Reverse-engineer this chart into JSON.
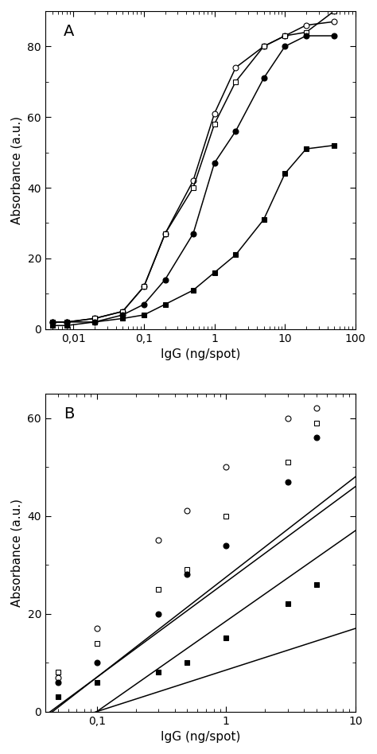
{
  "panel_A": {
    "label": "A",
    "xlabel": "IgG (ng/spot)",
    "ylabel": "Absorbance (a.u.)",
    "xlim": [
      0.004,
      100
    ],
    "ylim": [
      0,
      90
    ],
    "yticks": [
      0,
      20,
      40,
      60,
      80
    ],
    "series": [
      {
        "name": "open_circle",
        "marker": "o",
        "fillstyle": "none",
        "x": [
          0.005,
          0.008,
          0.02,
          0.05,
          0.1,
          0.2,
          0.5,
          1,
          2,
          5,
          10,
          20,
          50
        ],
        "y": [
          2,
          2,
          3,
          5,
          12,
          27,
          42,
          61,
          74,
          80,
          83,
          86,
          87
        ]
      },
      {
        "name": "open_square",
        "marker": "s",
        "fillstyle": "none",
        "x": [
          0.005,
          0.008,
          0.02,
          0.05,
          0.1,
          0.2,
          0.5,
          1,
          2,
          5,
          10,
          20,
          50
        ],
        "y": [
          2,
          2,
          3,
          5,
          12,
          27,
          40,
          58,
          70,
          80,
          83,
          84,
          90
        ]
      },
      {
        "name": "filled_circle",
        "marker": "o",
        "fillstyle": "full",
        "x": [
          0.005,
          0.008,
          0.02,
          0.05,
          0.1,
          0.2,
          0.5,
          1,
          2,
          5,
          10,
          20,
          50
        ],
        "y": [
          2,
          2,
          2,
          4,
          7,
          14,
          27,
          47,
          56,
          71,
          80,
          83,
          83
        ]
      },
      {
        "name": "filled_square",
        "marker": "s",
        "fillstyle": "full",
        "x": [
          0.005,
          0.008,
          0.02,
          0.05,
          0.1,
          0.2,
          0.5,
          1,
          2,
          5,
          10,
          20,
          50
        ],
        "y": [
          1,
          1,
          2,
          3,
          4,
          7,
          11,
          16,
          21,
          31,
          44,
          51,
          52
        ]
      }
    ]
  },
  "panel_B": {
    "label": "B",
    "xlabel": "IgG (ng/spot)",
    "ylabel": "Absorbance (a.u.)",
    "xlim": [
      0.04,
      10
    ],
    "ylim": [
      0,
      65
    ],
    "yticks": [
      0,
      20,
      40,
      60
    ],
    "series": [
      {
        "name": "open_circle",
        "marker": "o",
        "fillstyle": "none",
        "x": [
          0.05,
          0.1,
          0.3,
          0.5,
          1,
          3,
          5
        ],
        "y": [
          7,
          17,
          35,
          41,
          50,
          60,
          62
        ],
        "fit_log_slope": 20.5,
        "fit_log_intercept": 27.5
      },
      {
        "name": "open_square",
        "marker": "s",
        "fillstyle": "none",
        "x": [
          0.05,
          0.1,
          0.3,
          0.5,
          1,
          3,
          5
        ],
        "y": [
          8,
          14,
          25,
          29,
          40,
          51,
          59
        ],
        "fit_log_slope": 19.5,
        "fit_log_intercept": 26.5
      },
      {
        "name": "filled_circle",
        "marker": "o",
        "fillstyle": "full",
        "x": [
          0.05,
          0.1,
          0.3,
          0.5,
          1,
          3,
          5
        ],
        "y": [
          6,
          10,
          20,
          28,
          34,
          47,
          56
        ],
        "fit_log_slope": 18.5,
        "fit_log_intercept": 18.5
      },
      {
        "name": "filled_square",
        "marker": "s",
        "fillstyle": "full",
        "x": [
          0.05,
          0.1,
          0.3,
          0.5,
          1,
          3,
          5
        ],
        "y": [
          3,
          6,
          8,
          10,
          15,
          22,
          26
        ],
        "fit_log_slope": 8.5,
        "fit_log_intercept": 8.5
      }
    ]
  },
  "figure_bg": "#ffffff",
  "markersize": 5,
  "linewidth": 1.1
}
